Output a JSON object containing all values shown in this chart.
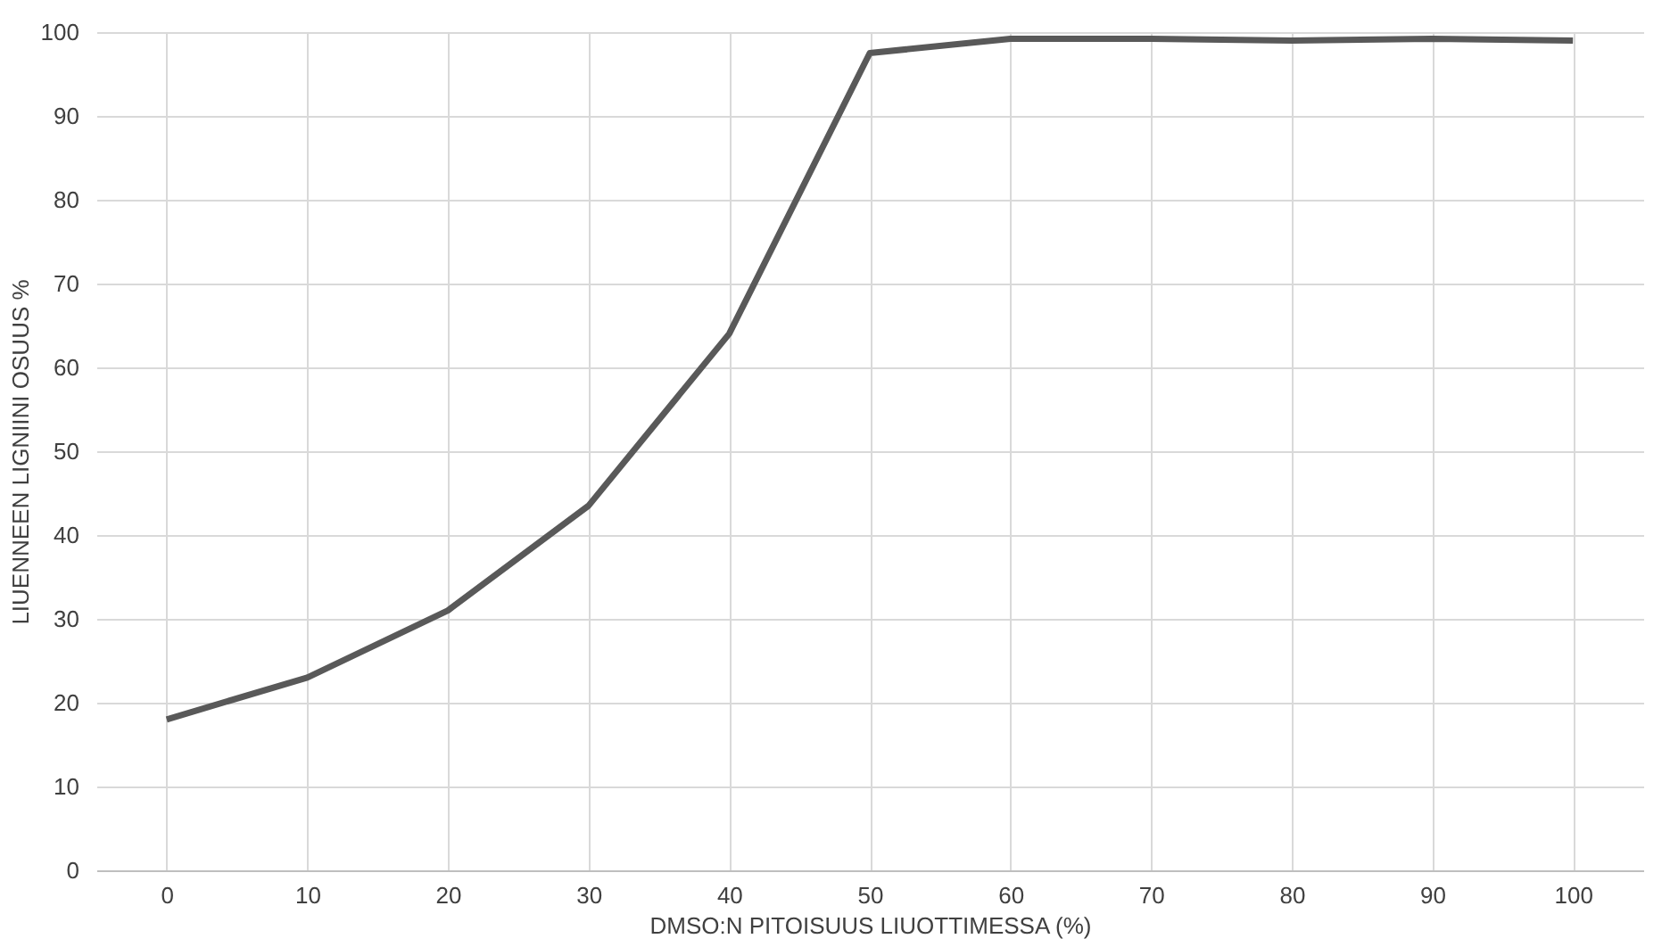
{
  "chart_data": {
    "type": "line",
    "xlabel": "DMSO:N PITOISUUS LIUOTTIMESSA (%)",
    "ylabel": "LIUENNEEN LIGNIINI OSUUS %",
    "categories": [
      "0",
      "10",
      "20",
      "30",
      "40",
      "50",
      "60",
      "70",
      "80",
      "90",
      "100"
    ],
    "series": [
      {
        "color": "#595959",
        "values": [
          18,
          23,
          31,
          43.5,
          64,
          97.5,
          99.2,
          99.2,
          99,
          99.2,
          99
        ]
      }
    ],
    "ylim": [
      0,
      100
    ],
    "yticks": [
      0,
      10,
      20,
      30,
      40,
      50,
      60,
      70,
      80,
      90,
      100
    ],
    "grid": true,
    "marker": "none",
    "line_style": "solid"
  }
}
